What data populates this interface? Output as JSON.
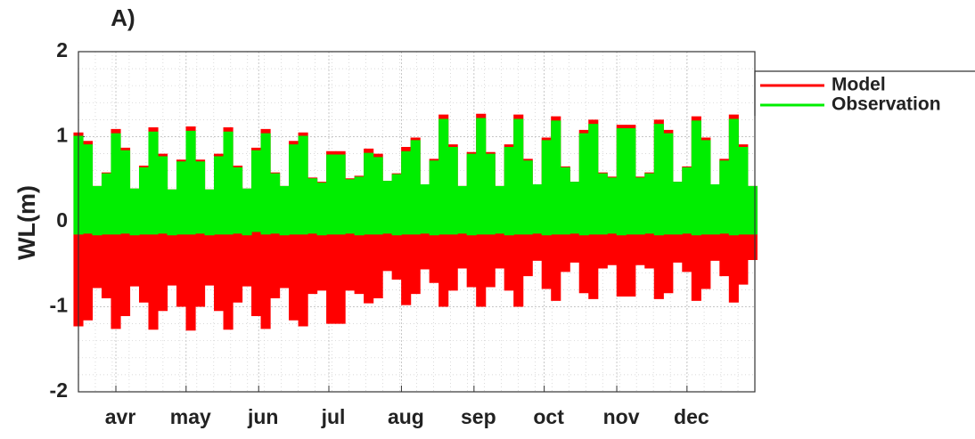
{
  "chart_data": {
    "type": "band",
    "title": "A)",
    "y_label": "WL(m)",
    "x": [
      75,
      79,
      83,
      87,
      91,
      95,
      99,
      103,
      107,
      111,
      115,
      119,
      123,
      127,
      131,
      135,
      139,
      143,
      147,
      151,
      155,
      159,
      163,
      167,
      171,
      175,
      179,
      183,
      187,
      191,
      195,
      199,
      203,
      207,
      211,
      215,
      219,
      223,
      227,
      231,
      235,
      239,
      243,
      247,
      251,
      255,
      259,
      263,
      267,
      271,
      275,
      279,
      283,
      287,
      291,
      295,
      299,
      303,
      307,
      311,
      315,
      319,
      323,
      327,
      331,
      335,
      339,
      343,
      347,
      351,
      355,
      359,
      363
    ],
    "xlim": [
      75,
      364
    ],
    "xticks": [
      {
        "value": 91,
        "label": "avr"
      },
      {
        "value": 121,
        "label": "may"
      },
      {
        "value": 152,
        "label": "jun"
      },
      {
        "value": 182,
        "label": "jul"
      },
      {
        "value": 213,
        "label": "aug"
      },
      {
        "value": 244,
        "label": "sep"
      },
      {
        "value": 274,
        "label": "oct"
      },
      {
        "value": 305,
        "label": "nov"
      },
      {
        "value": 335,
        "label": "dec"
      }
    ],
    "ylim": [
      -2,
      2
    ],
    "yticks": [
      -2,
      -1,
      0,
      1,
      2
    ],
    "grid": true,
    "legend": "outside-right",
    "series": [
      {
        "name": "Model",
        "color": "#ff0000",
        "high": [
          1.05,
          0.95,
          0.42,
          0.58,
          1.09,
          0.87,
          0.39,
          0.66,
          1.11,
          0.8,
          0.38,
          0.73,
          1.12,
          0.73,
          0.38,
          0.8,
          1.11,
          0.66,
          0.39,
          0.87,
          1.09,
          0.58,
          0.42,
          0.95,
          1.05,
          0.52,
          0.47,
          0.83,
          0.83,
          0.51,
          0.54,
          0.86,
          0.8,
          0.48,
          0.57,
          0.88,
          0.99,
          0.44,
          0.74,
          1.26,
          0.91,
          0.42,
          0.82,
          1.27,
          0.82,
          0.42,
          0.91,
          1.26,
          0.74,
          0.44,
          0.99,
          1.24,
          0.65,
          0.47,
          1.08,
          1.2,
          0.58,
          0.53,
          1.14,
          1.14,
          0.53,
          0.58,
          1.2,
          1.08,
          0.47,
          0.65,
          1.24,
          0.99,
          0.44,
          0.74,
          1.26,
          0.91,
          0.42
        ],
        "low": [
          -1.23,
          -1.16,
          -0.78,
          -0.9,
          -1.26,
          -1.11,
          -0.76,
          -0.95,
          -1.27,
          -1.05,
          -0.75,
          -1.0,
          -1.28,
          -1.0,
          -0.75,
          -1.05,
          -1.27,
          -0.95,
          -0.76,
          -1.11,
          -1.26,
          -0.9,
          -0.78,
          -1.16,
          -1.23,
          -0.85,
          -0.81,
          -1.2,
          -1.2,
          -0.81,
          -0.85,
          -0.96,
          -0.9,
          -0.58,
          -0.68,
          -0.98,
          -0.85,
          -0.56,
          -0.72,
          -1.0,
          -0.81,
          -0.55,
          -0.77,
          -1.0,
          -0.77,
          -0.55,
          -0.81,
          -1.0,
          -0.64,
          -0.46,
          -0.79,
          -0.93,
          -0.59,
          -0.48,
          -0.84,
          -0.91,
          -0.55,
          -0.51,
          -0.88,
          -0.88,
          -0.51,
          -0.55,
          -0.91,
          -0.84,
          -0.48,
          -0.59,
          -0.93,
          -0.79,
          -0.46,
          -0.64,
          -0.95,
          -0.74,
          -0.45
        ]
      },
      {
        "name": "Observation",
        "color": "#00ee00",
        "high": [
          1.01,
          0.91,
          0.42,
          0.57,
          1.04,
          0.84,
          0.39,
          0.64,
          1.06,
          0.77,
          0.38,
          0.71,
          1.07,
          0.71,
          0.38,
          0.77,
          1.06,
          0.64,
          0.39,
          0.84,
          1.04,
          0.57,
          0.42,
          0.91,
          1.01,
          0.51,
          0.46,
          0.79,
          0.79,
          0.5,
          0.53,
          0.81,
          0.76,
          0.48,
          0.56,
          0.83,
          0.96,
          0.44,
          0.72,
          1.21,
          0.88,
          0.42,
          0.8,
          1.22,
          0.8,
          0.42,
          0.88,
          1.21,
          0.72,
          0.44,
          0.96,
          1.19,
          0.64,
          0.47,
          1.04,
          1.15,
          0.57,
          0.52,
          1.1,
          1.1,
          0.52,
          0.57,
          1.15,
          1.04,
          0.47,
          0.64,
          1.19,
          0.96,
          0.44,
          0.72,
          1.21,
          0.88,
          0.42
        ],
        "low": [
          -0.15,
          -0.14,
          -0.16,
          -0.15,
          -0.15,
          -0.14,
          -0.16,
          -0.15,
          -0.15,
          -0.14,
          -0.16,
          -0.15,
          -0.15,
          -0.14,
          -0.16,
          -0.15,
          -0.15,
          -0.14,
          -0.16,
          -0.12,
          -0.15,
          -0.14,
          -0.16,
          -0.15,
          -0.15,
          -0.14,
          -0.16,
          -0.15,
          -0.15,
          -0.14,
          -0.16,
          -0.15,
          -0.15,
          -0.14,
          -0.16,
          -0.15,
          -0.15,
          -0.14,
          -0.16,
          -0.15,
          -0.15,
          -0.14,
          -0.16,
          -0.15,
          -0.15,
          -0.14,
          -0.16,
          -0.15,
          -0.15,
          -0.14,
          -0.16,
          -0.15,
          -0.15,
          -0.14,
          -0.16,
          -0.15,
          -0.15,
          -0.14,
          -0.16,
          -0.15,
          -0.15,
          -0.14,
          -0.16,
          -0.15,
          -0.15,
          -0.14,
          -0.16,
          -0.15,
          -0.15,
          -0.14,
          -0.16,
          -0.15,
          -0.15
        ]
      }
    ]
  }
}
